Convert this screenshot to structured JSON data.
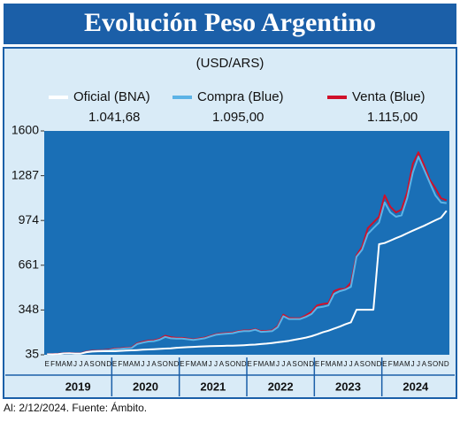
{
  "chart_data": {
    "type": "line",
    "title": "Evolución Peso Argentino",
    "subtitle": "(USD/ARS)",
    "footer": "Al: 2/12/2024. Fuente: Ámbito.",
    "categories": [
      "E",
      "F",
      "M",
      "A",
      "M",
      "J",
      "J",
      "A",
      "S",
      "O",
      "N",
      "D",
      "E",
      "F",
      "M",
      "A",
      "M",
      "J",
      "J",
      "A",
      "S",
      "O",
      "N",
      "D",
      "E",
      "F",
      "M",
      "A",
      "M",
      "J",
      "J",
      "A",
      "S",
      "O",
      "N",
      "D",
      "E",
      "F",
      "M",
      "A",
      "M",
      "J",
      "J",
      "A",
      "S",
      "O",
      "N",
      "D",
      "E",
      "F",
      "M",
      "A",
      "M",
      "J",
      "J",
      "A",
      "S",
      "O",
      "N",
      "D",
      "E",
      "F",
      "M",
      "A",
      "M",
      "J",
      "J",
      "A",
      "S",
      "O",
      "N",
      "D"
    ],
    "years": [
      "2019",
      "2020",
      "2021",
      "2022",
      "2023",
      "2024"
    ],
    "ylim": [
      35,
      1600
    ],
    "yticks": [
      35,
      348,
      661,
      974,
      1287,
      1600
    ],
    "series": [
      {
        "name": "Venta (Blue)",
        "color": "#d0102a",
        "current_label": "1.115,00",
        "values": [
          39,
          40,
          42,
          46,
          47,
          45,
          45,
          58,
          63,
          66,
          67,
          70,
          78,
          80,
          84,
          86,
          115,
          126,
          134,
          136,
          146,
          168,
          158,
          153,
          153,
          148,
          142,
          149,
          155,
          167,
          179,
          184,
          187,
          190,
          200,
          205,
          205,
          214,
          200,
          202,
          205,
          236,
          315,
          292,
          290,
          290,
          310,
          335,
          380,
          390,
          395,
          480,
          495,
          495,
          540,
          730,
          790,
          920,
          960,
          1000,
          1150,
          1070,
          1030,
          1050,
          1170,
          1370,
          1450,
          1360,
          1260,
          1200,
          1130,
          1115
        ]
      },
      {
        "name": "Compra (Blue)",
        "color": "#5cb3e6",
        "current_label": "1.095,00",
        "values": [
          37,
          38,
          40,
          44,
          45,
          43,
          43,
          55,
          60,
          63,
          64,
          66,
          74,
          76,
          80,
          82,
          110,
          120,
          128,
          130,
          140,
          160,
          150,
          148,
          148,
          143,
          138,
          144,
          150,
          163,
          175,
          180,
          183,
          186,
          196,
          201,
          201,
          210,
          195,
          197,
          200,
          228,
          305,
          285,
          285,
          285,
          300,
          320,
          365,
          370,
          380,
          460,
          480,
          490,
          510,
          720,
          770,
          880,
          920,
          960,
          1100,
          1030,
          1000,
          1010,
          1130,
          1310,
          1420,
          1330,
          1240,
          1150,
          1100,
          1095
        ]
      },
      {
        "name": "Oficial (BNA)",
        "color": "#ffffff",
        "current_label": "1.041,68",
        "values": [
          38,
          38,
          40,
          44,
          45,
          43,
          43,
          53,
          57,
          59,
          60,
          60,
          60,
          62,
          64,
          66,
          68,
          70,
          72,
          74,
          76,
          78,
          80,
          84,
          86,
          88,
          90,
          92,
          94,
          95,
          96,
          97,
          98,
          99,
          100,
          102,
          104,
          106,
          110,
          113,
          117,
          122,
          127,
          133,
          140,
          147,
          155,
          165,
          178,
          192,
          203,
          218,
          232,
          248,
          262,
          350,
          350,
          350,
          350,
          808,
          816,
          833,
          850,
          866,
          885,
          903,
          920,
          937,
          956,
          975,
          993,
          1041.68
        ]
      }
    ]
  }
}
